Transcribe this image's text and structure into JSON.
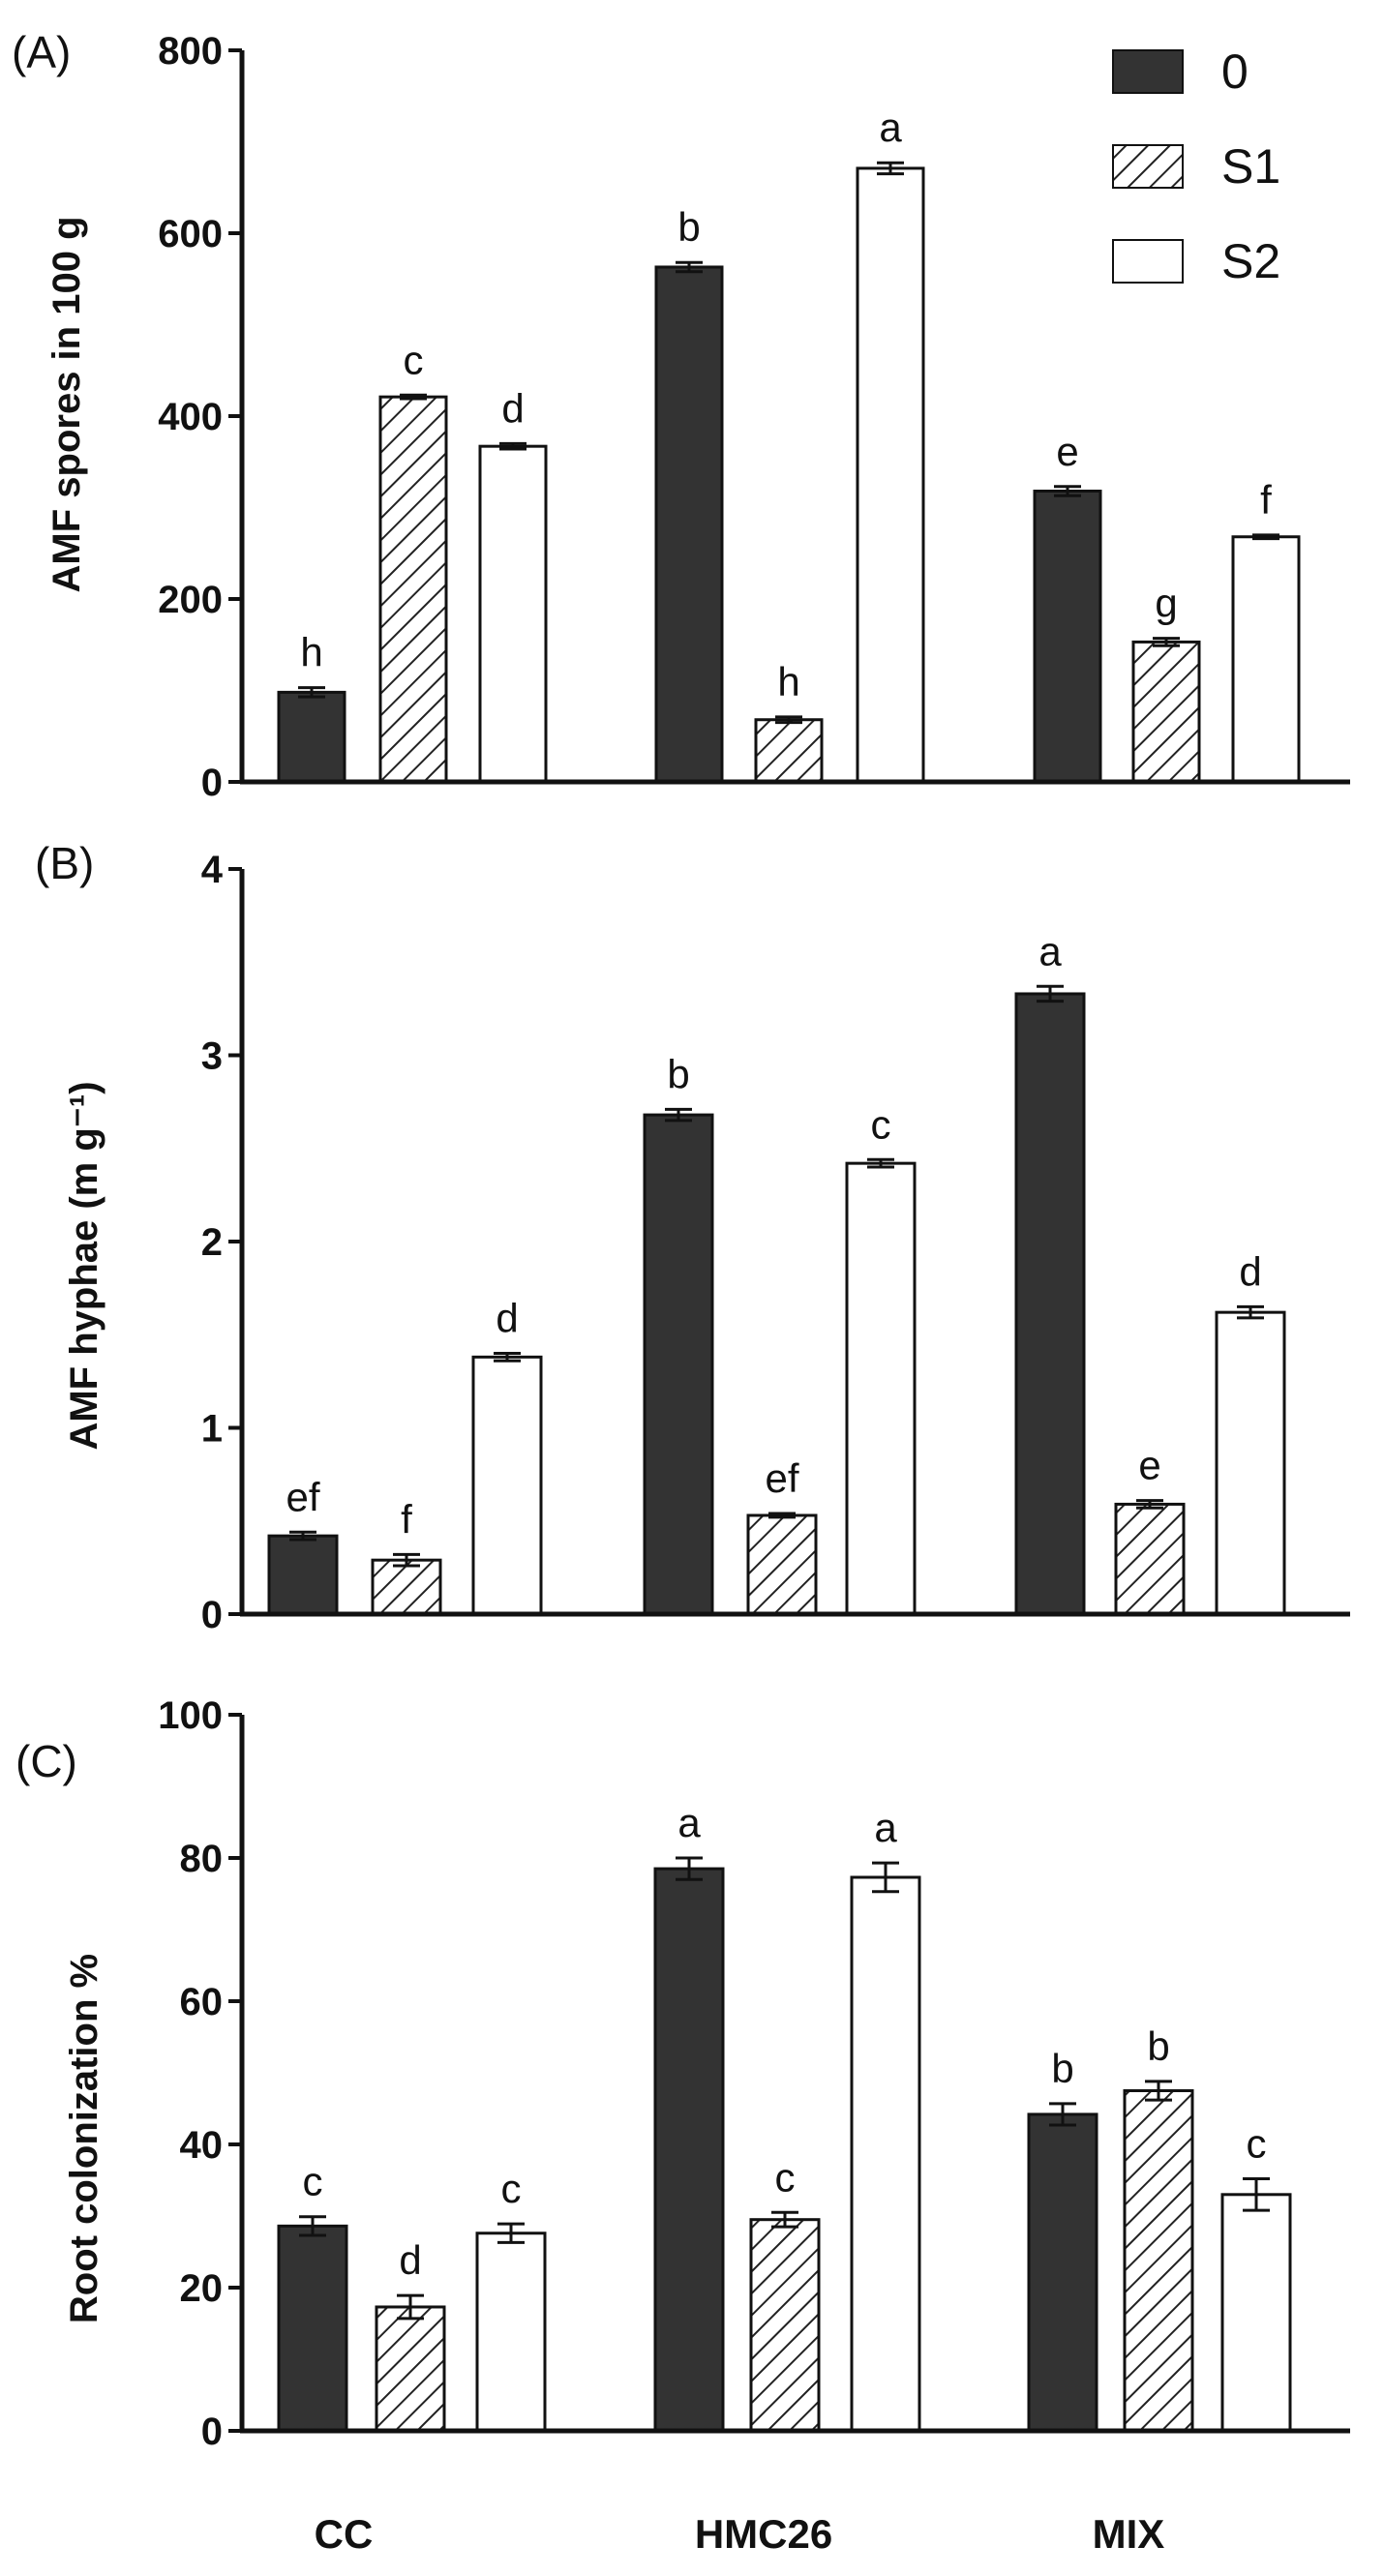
{
  "colors": {
    "dark": "#333333",
    "hatch": "#222222",
    "white": "#ffffff",
    "axis": "#111111"
  },
  "legend": {
    "items": [
      {
        "label": "0",
        "style": "dark"
      },
      {
        "label": "S1",
        "style": "hatch"
      },
      {
        "label": "S2",
        "style": "white"
      }
    ]
  },
  "xaxis": {
    "categories": [
      "CC",
      "HMC26",
      "MIX"
    ]
  },
  "chart_data": [
    {
      "type": "bar",
      "panel_label": "(A)",
      "ylabel": "AMF spores in 100 g",
      "ylim": [
        0,
        800
      ],
      "yticks": [
        0,
        200,
        400,
        600,
        800
      ],
      "ytick_labels": [
        "0",
        "200",
        "400",
        "600",
        "800"
      ],
      "categories": [
        "CC",
        "HMC26",
        "MIX"
      ],
      "series": [
        {
          "name": "0",
          "values": [
            98,
            563,
            318
          ],
          "errors": [
            5,
            5,
            5
          ],
          "letters": [
            "h",
            "b",
            "e"
          ]
        },
        {
          "name": "S1",
          "values": [
            421,
            68,
            153
          ],
          "errors": [
            2,
            3,
            4
          ],
          "letters": [
            "c",
            "h",
            "g"
          ]
        },
        {
          "name": "S2",
          "values": [
            367,
            671,
            268
          ],
          "errors": [
            3,
            6,
            2
          ],
          "letters": [
            "d",
            "a",
            "f"
          ]
        }
      ]
    },
    {
      "type": "bar",
      "panel_label": "(B)",
      "ylabel": "AMF hyphae (m g⁻¹)",
      "ylim": [
        0,
        4
      ],
      "yticks": [
        0,
        1,
        2,
        3,
        4
      ],
      "ytick_labels": [
        "0",
        "1",
        "2",
        "3",
        "4"
      ],
      "categories": [
        "CC",
        "HMC26",
        "MIX"
      ],
      "series": [
        {
          "name": "0",
          "values": [
            0.42,
            2.68,
            3.33
          ],
          "errors": [
            0.02,
            0.03,
            0.04
          ],
          "letters": [
            "ef",
            "b",
            "a"
          ]
        },
        {
          "name": "S1",
          "values": [
            0.29,
            0.53,
            0.59
          ],
          "errors": [
            0.03,
            0.01,
            0.02
          ],
          "letters": [
            "f",
            "ef",
            "e"
          ]
        },
        {
          "name": "S2",
          "values": [
            1.38,
            2.42,
            1.62
          ],
          "errors": [
            0.02,
            0.02,
            0.03
          ],
          "letters": [
            "d",
            "c",
            "d"
          ]
        }
      ]
    },
    {
      "type": "bar",
      "panel_label": "(C)",
      "ylabel": "Root colonization %",
      "ylim": [
        0,
        100
      ],
      "yticks": [
        0,
        20,
        40,
        60,
        80,
        100
      ],
      "ytick_labels": [
        "0",
        "20",
        "40",
        "60",
        "80",
        "100"
      ],
      "categories": [
        "CC",
        "HMC26",
        "MIX"
      ],
      "series": [
        {
          "name": "0",
          "values": [
            28.6,
            78.5,
            44.2
          ],
          "errors": [
            1.3,
            1.5,
            1.5
          ],
          "letters": [
            "c",
            "a",
            "b"
          ]
        },
        {
          "name": "S1",
          "values": [
            17.3,
            29.5,
            47.5
          ],
          "errors": [
            1.6,
            1.0,
            1.3
          ],
          "letters": [
            "d",
            "c",
            "b"
          ]
        },
        {
          "name": "S2",
          "values": [
            27.6,
            77.3,
            33.0
          ],
          "errors": [
            1.3,
            2.0,
            2.2
          ],
          "letters": [
            "c",
            "a",
            "c"
          ]
        }
      ]
    }
  ]
}
